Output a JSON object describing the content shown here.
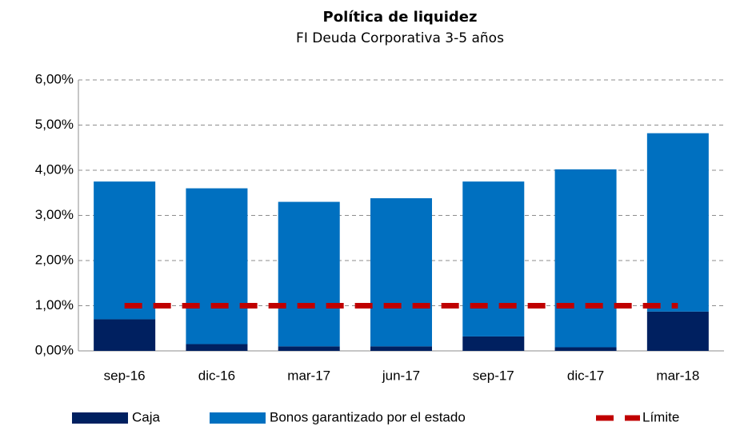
{
  "chart_data": {
    "type": "bar",
    "stacked": true,
    "title": "Política de liquidez",
    "subtitle": "FI Deuda Corporativa 3-5 años",
    "categories": [
      "sep-16",
      "dic-16",
      "mar-17",
      "jun-17",
      "sep-17",
      "dic-17",
      "mar-18"
    ],
    "series": [
      {
        "name": "Caja",
        "color": "#002060",
        "values": [
          0.7,
          0.15,
          0.1,
          0.1,
          0.32,
          0.08,
          0.87
        ]
      },
      {
        "name": "Bonos garantizado por el estado",
        "color": "#0070c0",
        "values": [
          3.05,
          3.45,
          3.2,
          3.28,
          3.43,
          3.94,
          3.95
        ]
      },
      {
        "name": "Límite",
        "type": "line",
        "color": "#c00000",
        "dashed": true,
        "values": [
          1,
          1,
          1,
          1,
          1,
          1,
          1
        ]
      }
    ],
    "ylim": [
      0,
      6
    ],
    "yticks": [
      {
        "value": 0,
        "label": "0,00%"
      },
      {
        "value": 1,
        "label": "1,00%"
      },
      {
        "value": 2,
        "label": "2,00%"
      },
      {
        "value": 3,
        "label": "3,00%"
      },
      {
        "value": 4,
        "label": "4,00%"
      },
      {
        "value": 5,
        "label": "5,00%"
      },
      {
        "value": 6,
        "label": "6,00%"
      }
    ],
    "grid": true,
    "legend": "bottom"
  }
}
